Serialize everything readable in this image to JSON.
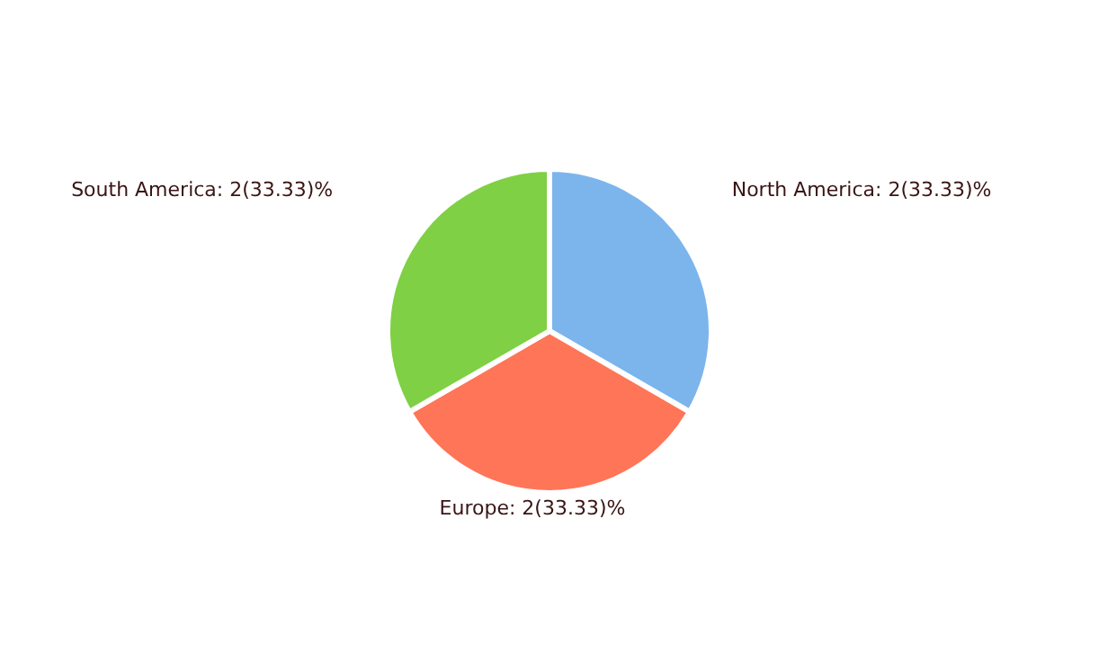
{
  "chart_data": {
    "type": "pie",
    "categories": [
      "North America",
      "Europe",
      "South America"
    ],
    "values": [
      2,
      2,
      2
    ],
    "colors": [
      "#7cb5ec",
      "#ff7558",
      "#7fd044"
    ],
    "value_labels": [
      "2(33.33)%",
      "2(33.33)%",
      "2(33.33)%"
    ]
  }
}
